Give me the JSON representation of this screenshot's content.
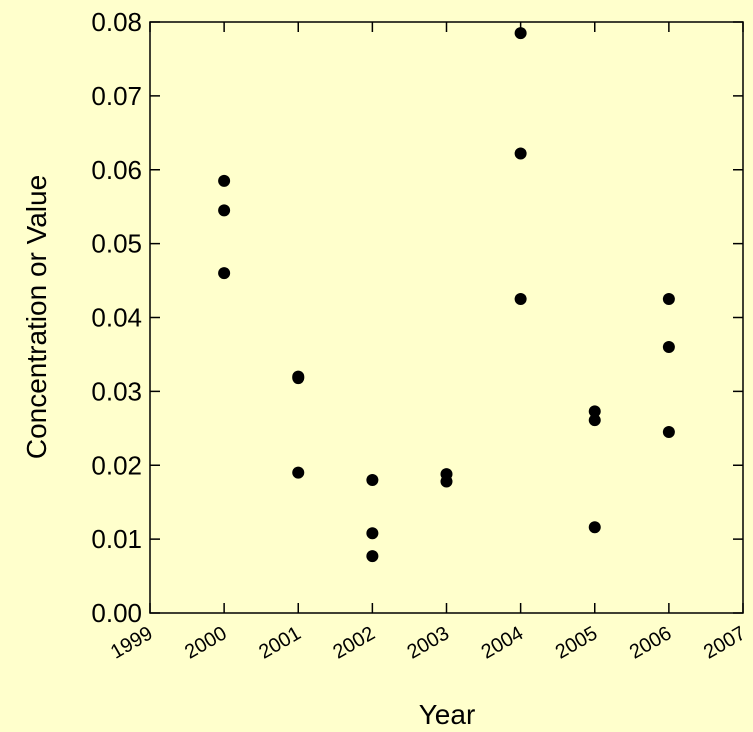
{
  "chart_data": {
    "type": "scatter",
    "title": "",
    "xlabel": "Year",
    "ylabel": "Concentration or Value",
    "xlim": [
      1999,
      2007
    ],
    "ylim": [
      0.0,
      0.08
    ],
    "x_ticks": [
      "1999",
      "2000",
      "2001",
      "2002",
      "2003",
      "2004",
      "2005",
      "2006",
      "2007"
    ],
    "y_ticks": [
      "0.00",
      "0.01",
      "0.02",
      "0.03",
      "0.04",
      "0.05",
      "0.06",
      "0.07",
      "0.08"
    ],
    "grid": false,
    "background": "#ffffcc",
    "marker_color": "#000000",
    "points": [
      {
        "x": 2000,
        "y": 0.0585
      },
      {
        "x": 2000,
        "y": 0.0545
      },
      {
        "x": 2000,
        "y": 0.046
      },
      {
        "x": 2001,
        "y": 0.032
      },
      {
        "x": 2001,
        "y": 0.0318
      },
      {
        "x": 2001,
        "y": 0.019
      },
      {
        "x": 2002,
        "y": 0.018
      },
      {
        "x": 2002,
        "y": 0.0108
      },
      {
        "x": 2002,
        "y": 0.0077
      },
      {
        "x": 2003,
        "y": 0.0188
      },
      {
        "x": 2003,
        "y": 0.0178
      },
      {
        "x": 2004,
        "y": 0.0785
      },
      {
        "x": 2004,
        "y": 0.0622
      },
      {
        "x": 2004,
        "y": 0.0425
      },
      {
        "x": 2005,
        "y": 0.0273
      },
      {
        "x": 2005,
        "y": 0.0261
      },
      {
        "x": 2005,
        "y": 0.0116
      },
      {
        "x": 2006,
        "y": 0.0425
      },
      {
        "x": 2006,
        "y": 0.036
      },
      {
        "x": 2006,
        "y": 0.0245
      }
    ]
  }
}
